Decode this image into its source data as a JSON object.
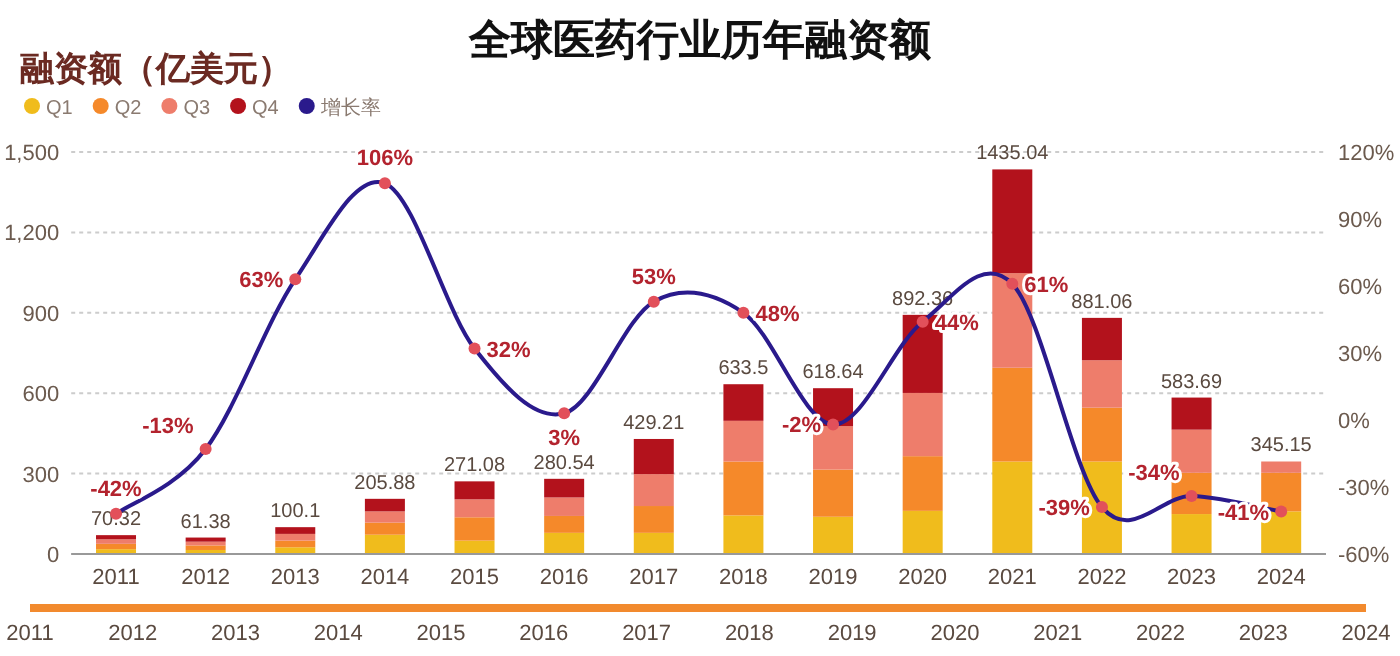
{
  "chart_data": {
    "type": "bar",
    "title": "全球医药行业历年融资额",
    "ylabel": "融资额（亿美元）",
    "categories": [
      "2011",
      "2012",
      "2013",
      "2014",
      "2015",
      "2016",
      "2017",
      "2018",
      "2019",
      "2020",
      "2021",
      "2022",
      "2023",
      "2024"
    ],
    "stacked": true,
    "series": [
      {
        "name": "Q1",
        "color": "#f0bc1c",
        "values": [
          18,
          15,
          25,
          72,
          50,
          79,
          79,
          144,
          139,
          161,
          345,
          345,
          149,
          159
        ]
      },
      {
        "name": "Q2",
        "color": "#f5892a",
        "values": [
          20,
          17,
          25,
          45,
          87,
          63,
          100,
          201,
          176,
          204,
          350,
          201,
          154,
          144
        ]
      },
      {
        "name": "Q3",
        "color": "#ee7d6b",
        "values": [
          17,
          14,
          25,
          42,
          67,
          69,
          119,
          152,
          162,
          236,
          353,
          177,
          161,
          42.15
        ]
      },
      {
        "name": "Q4",
        "color": "#b3121c",
        "values": [
          15.32,
          15.38,
          25.1,
          46.88,
          67.08,
          69.54,
          131.21,
          136.5,
          141.64,
          291.36,
          387.04,
          158.06,
          119.69,
          null
        ]
      },
      {
        "name": "增长率",
        "type": "line",
        "axis": "y2",
        "color": "#2a1a8c",
        "marker": "circle",
        "values": [
          -42,
          -13,
          63,
          106,
          32,
          3,
          53,
          48,
          -2,
          44,
          61,
          -39,
          -34,
          -41
        ],
        "value_labels": [
          "-42%",
          "-13%",
          "63%",
          "106%",
          "32%",
          "3%",
          "53%",
          "48%",
          "-2%",
          "44%",
          "61%",
          "-39%",
          "-34%",
          "-41%"
        ]
      }
    ],
    "totals": [
      "70.32",
      "61.38",
      "100.1",
      "205.88",
      "271.08",
      "280.54",
      "429.21",
      "633.5",
      "618.64",
      "892.36",
      "1435.04",
      "881.06",
      "583.69",
      "345.15"
    ],
    "ylim": [
      0,
      1500
    ],
    "yticks": [
      {
        "value": 0,
        "label": "0"
      },
      {
        "value": 300,
        "label": "300"
      },
      {
        "value": 600,
        "label": "600"
      },
      {
        "value": 900,
        "label": "900"
      },
      {
        "value": 1200,
        "label": "1,200"
      },
      {
        "value": 1500,
        "label": "1,500"
      }
    ],
    "y2lim": [
      -60,
      120
    ],
    "y2ticks": [
      {
        "value": -60,
        "label": "-60%"
      },
      {
        "value": -30,
        "label": "-30%"
      },
      {
        "value": 0,
        "label": "0%"
      },
      {
        "value": 30,
        "label": "30%"
      },
      {
        "value": 60,
        "label": "60%"
      },
      {
        "value": 90,
        "label": "90%"
      },
      {
        "value": 120,
        "label": "120%"
      }
    ],
    "x2lim": [
      2011,
      2024
    ],
    "x2ticks": [
      2011,
      2012,
      2013,
      2014,
      2015,
      2016,
      2017,
      2018,
      2019,
      2020,
      2021,
      2022,
      2023,
      2024
    ],
    "grid": "y",
    "legend": "top left"
  }
}
